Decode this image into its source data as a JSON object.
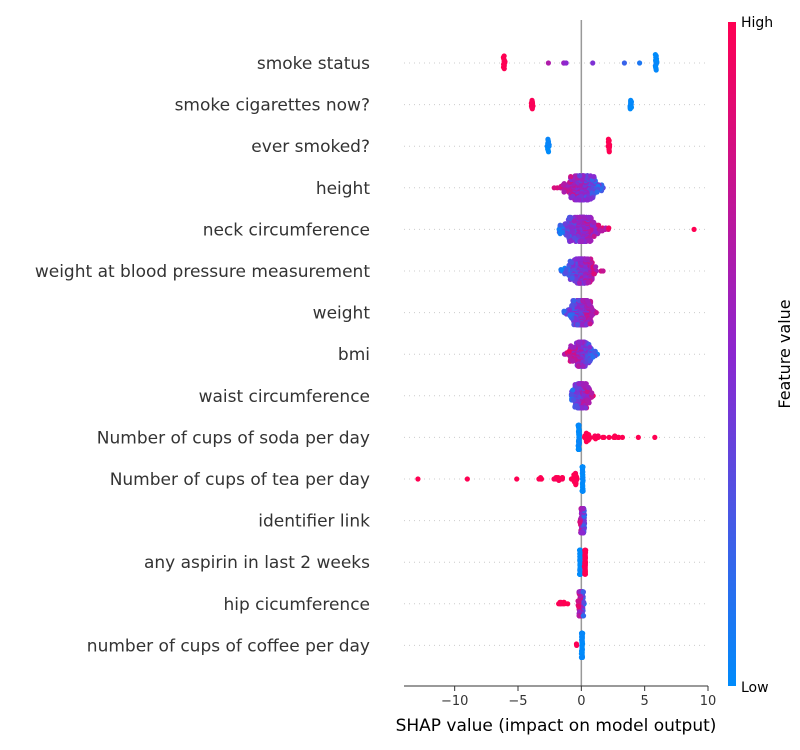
{
  "chart_data": {
    "type": "scatter",
    "subtype": "shap-beeswarm",
    "title": "",
    "xlabel": "SHAP value (impact on model output)",
    "ylabel": "",
    "xlim": [
      -14,
      10
    ],
    "xticks": [
      -10,
      -5,
      0,
      5,
      10
    ],
    "xtick_labels": [
      "−10",
      "−5",
      "0",
      "5",
      "10"
    ],
    "grid": false,
    "zero_line": true,
    "colorbar": {
      "title": "Feature value",
      "high_label": "High",
      "low_label": "Low",
      "high_color": "#ff0052",
      "low_color": "#008bfb"
    },
    "features": [
      {
        "name": "smoke status",
        "groups": [
          {
            "x": -6.1,
            "n": 12,
            "spread": 0.1,
            "v": 1.0
          },
          {
            "x": -2.6,
            "n": 1,
            "spread": 0,
            "v": 0.65
          },
          {
            "x": -1.4,
            "n": 2,
            "spread": 0.1,
            "v": 0.55
          },
          {
            "x": -1.2,
            "n": 1,
            "spread": 0,
            "v": 0.5
          },
          {
            "x": 0.9,
            "n": 1,
            "spread": 0,
            "v": 0.45
          },
          {
            "x": 3.4,
            "n": 1,
            "spread": 0,
            "v": 0.2
          },
          {
            "x": 4.6,
            "n": 1,
            "spread": 0,
            "v": 0.1
          },
          {
            "x": 5.9,
            "n": 14,
            "spread": 0.1,
            "v": 0.0
          }
        ]
      },
      {
        "name": "smoke cigarettes now?",
        "groups": [
          {
            "x": -3.9,
            "n": 12,
            "spread": 0.1,
            "v": 1.0
          },
          {
            "x": 3.9,
            "n": 12,
            "spread": 0.1,
            "v": 0.0
          }
        ]
      },
      {
        "name": "ever smoked?",
        "groups": [
          {
            "x": -2.6,
            "n": 12,
            "spread": 0.1,
            "v": 0.0
          },
          {
            "x": 2.2,
            "n": 12,
            "spread": 0.1,
            "v": 1.0
          }
        ]
      },
      {
        "name": "height",
        "groups": [
          {
            "x": 0,
            "n": 360,
            "spread": 1.9,
            "v": 0.5,
            "trend": -1,
            "min": -4.4,
            "max": 4.3
          }
        ]
      },
      {
        "name": "neck circumference",
        "groups": [
          {
            "x": 0,
            "n": 380,
            "spread": 2.0,
            "v": 0.5,
            "trend": 1,
            "min": -4.8,
            "max": 7.2
          },
          {
            "x": 8.9,
            "n": 1,
            "spread": 0,
            "v": 1.0
          }
        ]
      },
      {
        "name": "weight at blood pressure measurement",
        "groups": [
          {
            "x": 0,
            "n": 330,
            "spread": 1.4,
            "v": 0.5,
            "trend": 1,
            "min": -2.9,
            "max": 4.0
          }
        ]
      },
      {
        "name": "weight",
        "groups": [
          {
            "x": 0,
            "n": 320,
            "spread": 1.3,
            "v": 0.5,
            "trend": 1,
            "min": -2.5,
            "max": 3.7
          }
        ]
      },
      {
        "name": "bmi",
        "groups": [
          {
            "x": 0,
            "n": 250,
            "spread": 1.3,
            "v": 0.5,
            "trend": -1,
            "min": -3.9,
            "max": 1.9
          }
        ]
      },
      {
        "name": "waist circumference",
        "groups": [
          {
            "x": 0,
            "n": 240,
            "spread": 0.9,
            "v": 0.5,
            "trend": 1,
            "min": -1.8,
            "max": 2.2
          }
        ]
      },
      {
        "name": "Number of cups of soda per day",
        "groups": [
          {
            "x": -0.2,
            "n": 60,
            "spread": 0.05,
            "v": 0.0
          },
          {
            "x": 0.5,
            "n": 20,
            "spread": 0.3,
            "v": 1.0
          },
          {
            "x": 1.6,
            "n": 10,
            "spread": 0.8,
            "v": 1.0
          },
          {
            "x": 3.0,
            "n": 6,
            "spread": 0.6,
            "v": 1.0
          },
          {
            "x": 4.5,
            "n": 1,
            "spread": 0,
            "v": 1.0
          },
          {
            "x": 5.8,
            "n": 1,
            "spread": 0,
            "v": 1.0
          }
        ]
      },
      {
        "name": "Number of cups of tea per day",
        "groups": [
          {
            "x": 0.1,
            "n": 60,
            "spread": 0.05,
            "v": 0.0
          },
          {
            "x": -0.5,
            "n": 20,
            "spread": 0.3,
            "v": 1.0
          },
          {
            "x": -1.8,
            "n": 12,
            "spread": 0.7,
            "v": 1.0
          },
          {
            "x": -3.2,
            "n": 4,
            "spread": 0.2,
            "v": 1.0
          },
          {
            "x": -5.1,
            "n": 1,
            "spread": 0,
            "v": 1.0
          },
          {
            "x": -9.0,
            "n": 1,
            "spread": 0,
            "v": 1.0
          },
          {
            "x": -12.9,
            "n": 1,
            "spread": 0,
            "v": 1.0
          }
        ]
      },
      {
        "name": "identifier link",
        "groups": [
          {
            "x": 0.1,
            "n": 120,
            "spread": 0.2,
            "v": 0.5,
            "trend": -1,
            "min": -0.5,
            "max": 0.5
          }
        ]
      },
      {
        "name": "any aspirin in last 2 weeks",
        "groups": [
          {
            "x": -0.1,
            "n": 60,
            "spread": 0.05,
            "v": 0.0
          },
          {
            "x": 0.3,
            "n": 40,
            "spread": 0.05,
            "v": 1.0
          }
        ]
      },
      {
        "name": "hip cicumference",
        "groups": [
          {
            "x": 0,
            "n": 120,
            "spread": 0.25,
            "v": 0.3,
            "trend": -1,
            "min": -0.6,
            "max": 0.6
          },
          {
            "x": -1.5,
            "n": 10,
            "spread": 0.5,
            "v": 1.0
          }
        ]
      },
      {
        "name": "number of cups of coffee per day",
        "groups": [
          {
            "x": 0.05,
            "n": 80,
            "spread": 0.05,
            "v": 0.0
          },
          {
            "x": -0.4,
            "n": 2,
            "spread": 0.05,
            "v": 1.0
          }
        ]
      }
    ]
  }
}
